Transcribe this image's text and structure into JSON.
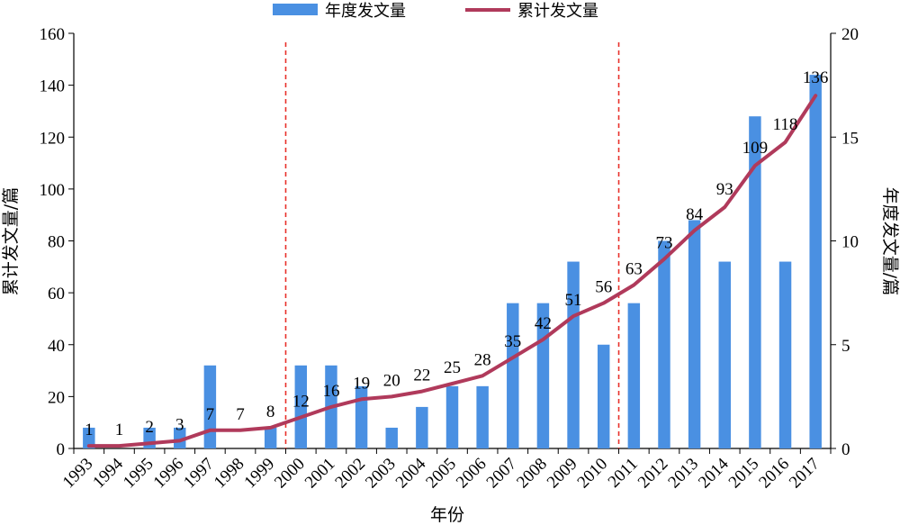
{
  "chart_data": {
    "type": "bar+line",
    "title": "",
    "xlabel": "年份",
    "ylabel_left": "累计发文量/篇",
    "ylabel_right": "年度发文量/篇",
    "ylim_left": [
      0,
      160
    ],
    "ylim_right": [
      0,
      20
    ],
    "yticks_left": [
      0,
      20,
      40,
      60,
      80,
      100,
      120,
      140,
      160
    ],
    "yticks_right": [
      0,
      5,
      10,
      15,
      20
    ],
    "legend_position": "top-center",
    "categories": [
      "1993",
      "1994",
      "1995",
      "1996",
      "1997",
      "1998",
      "1999",
      "2000",
      "2001",
      "2002",
      "2003",
      "2004",
      "2005",
      "2006",
      "2007",
      "2008",
      "2009",
      "2010",
      "2011",
      "2012",
      "2013",
      "2014",
      "2015",
      "2016",
      "2017"
    ],
    "series": [
      {
        "name": "年度发文量",
        "type": "bar",
        "axis": "right",
        "color": "#4a90e2",
        "values": [
          1,
          0,
          1,
          1,
          4,
          0,
          1,
          4,
          4,
          3,
          1,
          2,
          3,
          3,
          7,
          7,
          9,
          5,
          7,
          10,
          11,
          9,
          16,
          9,
          18
        ]
      },
      {
        "name": "累计发文量",
        "type": "line",
        "axis": "left",
        "color": "#b03a5b",
        "values": [
          1,
          1,
          2,
          3,
          7,
          7,
          8,
          12,
          16,
          19,
          20,
          22,
          25,
          28,
          35,
          42,
          51,
          56,
          63,
          73,
          84,
          93,
          109,
          118,
          136
        ]
      }
    ],
    "vertical_markers": [
      "1999",
      "2010"
    ],
    "marker_color": "#e8302a",
    "grid": false
  }
}
